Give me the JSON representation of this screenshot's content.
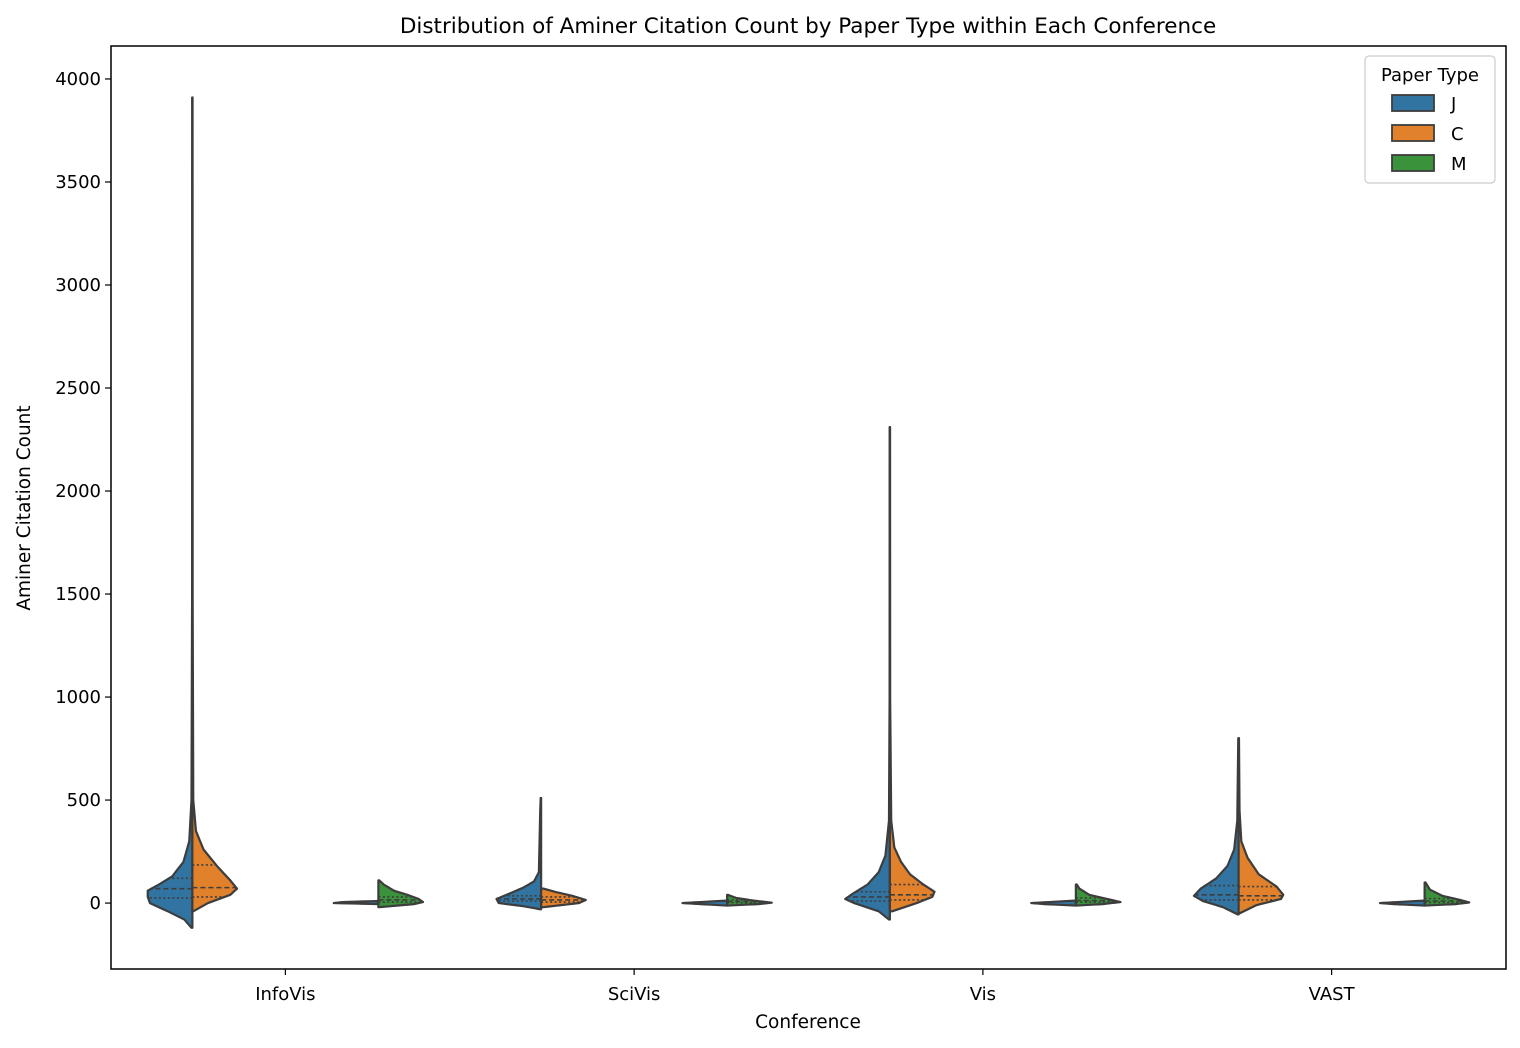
{
  "chart_data": {
    "type": "violin",
    "title": "Distribution of Aminer Citation Count by Paper Type within Each Conference",
    "xlabel": "Conference",
    "ylabel": "Aminer Citation Count",
    "ylim": [
      -320,
      4160
    ],
    "yticks": [
      0,
      500,
      1000,
      1500,
      2000,
      2500,
      3000,
      3500,
      4000
    ],
    "categories": [
      "InfoVis",
      "SciVis",
      "Vis",
      "VAST"
    ],
    "legend": {
      "title": "Paper Type",
      "position": "top-right",
      "entries": [
        {
          "label": "J",
          "color": "#3274a1"
        },
        {
          "label": "C",
          "color": "#e1812c"
        },
        {
          "label": "M",
          "color": "#3a923a"
        }
      ]
    },
    "violins": [
      {
        "conference": "InfoVis",
        "slot": 0,
        "left": "J",
        "right": "C",
        "min": -120,
        "max": 3910,
        "left_profile": [
          [
            -120,
            0.02
          ],
          [
            -80,
            0.18
          ],
          [
            -40,
            0.55
          ],
          [
            0,
            0.95
          ],
          [
            30,
            1.0
          ],
          [
            60,
            1.0
          ],
          [
            90,
            0.75
          ],
          [
            130,
            0.45
          ],
          [
            200,
            0.2
          ],
          [
            300,
            0.07
          ],
          [
            500,
            0.02
          ],
          [
            1500,
            0.006
          ],
          [
            3910,
            0.004
          ]
        ],
        "right_profile": [
          [
            -40,
            0.02
          ],
          [
            0,
            0.35
          ],
          [
            40,
            0.85
          ],
          [
            70,
            1.0
          ],
          [
            110,
            0.85
          ],
          [
            180,
            0.55
          ],
          [
            260,
            0.25
          ],
          [
            350,
            0.08
          ],
          [
            500,
            0.02
          ],
          [
            1500,
            0.006
          ],
          [
            3910,
            0.004
          ]
        ],
        "left_quartiles": [
          25,
          70,
          120
        ],
        "right_quartiles": [
          30,
          75,
          185
        ]
      },
      {
        "conference": "InfoVis",
        "slot": 2,
        "left": "J",
        "right": "M",
        "min": -20,
        "max": 110,
        "left_profile": [
          [
            -5,
            0.0
          ],
          [
            0,
            1.0
          ],
          [
            5,
            0.8
          ],
          [
            10,
            0.0
          ]
        ],
        "right_profile": [
          [
            -20,
            0.02
          ],
          [
            -5,
            0.8
          ],
          [
            5,
            1.0
          ],
          [
            20,
            0.9
          ],
          [
            40,
            0.65
          ],
          [
            60,
            0.35
          ],
          [
            90,
            0.12
          ],
          [
            110,
            0.02
          ]
        ],
        "left_quartiles": [],
        "right_quartiles": [
          5,
          15,
          30
        ]
      },
      {
        "conference": "SciVis",
        "slot": 0,
        "left": "J",
        "right": "C",
        "min": -30,
        "max": 510,
        "left_profile": [
          [
            -30,
            0.02
          ],
          [
            -15,
            0.4
          ],
          [
            0,
            0.95
          ],
          [
            20,
            1.0
          ],
          [
            45,
            0.72
          ],
          [
            75,
            0.4
          ],
          [
            105,
            0.16
          ],
          [
            150,
            0.05
          ],
          [
            250,
            0.04
          ],
          [
            350,
            0.03
          ],
          [
            450,
            0.02
          ],
          [
            510,
            0.01
          ]
        ],
        "right_profile": [
          [
            -20,
            0.05
          ],
          [
            0,
            0.85
          ],
          [
            15,
            1.0
          ],
          [
            35,
            0.7
          ],
          [
            55,
            0.3
          ],
          [
            70,
            0.06
          ]
        ],
        "left_quartiles": [
          10,
          20,
          35
        ],
        "right_quartiles": [
          5,
          15,
          30
        ]
      },
      {
        "conference": "SciVis",
        "slot": 2,
        "left": "J",
        "right": "M",
        "min": -12,
        "max": 40,
        "left_profile": [
          [
            -12,
            0.02
          ],
          [
            -5,
            0.6
          ],
          [
            0,
            1.0
          ],
          [
            5,
            0.6
          ],
          [
            12,
            0.02
          ]
        ],
        "right_profile": [
          [
            -12,
            0.02
          ],
          [
            -5,
            0.7
          ],
          [
            2,
            1.0
          ],
          [
            12,
            0.6
          ],
          [
            25,
            0.2
          ],
          [
            40,
            0.02
          ]
        ],
        "left_quartiles": [],
        "right_quartiles": [
          2,
          8,
          15
        ]
      },
      {
        "conference": "Vis",
        "slot": 0,
        "left": "J",
        "right": "C",
        "min": -80,
        "max": 2310,
        "left_profile": [
          [
            -80,
            0.02
          ],
          [
            -40,
            0.25
          ],
          [
            0,
            0.8
          ],
          [
            20,
            1.0
          ],
          [
            50,
            0.8
          ],
          [
            90,
            0.5
          ],
          [
            150,
            0.25
          ],
          [
            230,
            0.1
          ],
          [
            400,
            0.02
          ],
          [
            1000,
            0.006
          ],
          [
            2310,
            0.004
          ]
        ],
        "right_profile": [
          [
            -40,
            0.05
          ],
          [
            0,
            0.6
          ],
          [
            30,
            0.95
          ],
          [
            55,
            1.0
          ],
          [
            90,
            0.75
          ],
          [
            140,
            0.45
          ],
          [
            200,
            0.25
          ],
          [
            270,
            0.1
          ],
          [
            400,
            0.03
          ],
          [
            1000,
            0.006
          ],
          [
            2310,
            0.004
          ]
        ],
        "left_quartiles": [
          10,
          30,
          55
        ],
        "right_quartiles": [
          15,
          40,
          90
        ]
      },
      {
        "conference": "Vis",
        "slot": 2,
        "left": "J",
        "right": "M",
        "min": -12,
        "max": 90,
        "left_profile": [
          [
            -12,
            0.02
          ],
          [
            -5,
            0.7
          ],
          [
            0,
            1.0
          ],
          [
            5,
            0.6
          ],
          [
            12,
            0.02
          ]
        ],
        "right_profile": [
          [
            -12,
            0.02
          ],
          [
            -5,
            0.6
          ],
          [
            5,
            1.0
          ],
          [
            20,
            0.7
          ],
          [
            40,
            0.3
          ],
          [
            70,
            0.08
          ],
          [
            90,
            0.02
          ]
        ],
        "left_quartiles": [],
        "right_quartiles": [
          5,
          12,
          25
        ]
      },
      {
        "conference": "VAST",
        "slot": 0,
        "left": "J",
        "right": "C",
        "min": -55,
        "max": 800,
        "left_profile": [
          [
            -55,
            0.02
          ],
          [
            -20,
            0.35
          ],
          [
            10,
            0.8
          ],
          [
            35,
            1.0
          ],
          [
            70,
            0.85
          ],
          [
            120,
            0.5
          ],
          [
            180,
            0.25
          ],
          [
            260,
            0.1
          ],
          [
            400,
            0.03
          ],
          [
            800,
            0.008
          ]
        ],
        "right_profile": [
          [
            -50,
            0.02
          ],
          [
            -10,
            0.4
          ],
          [
            20,
            0.95
          ],
          [
            40,
            1.0
          ],
          [
            80,
            0.85
          ],
          [
            140,
            0.45
          ],
          [
            220,
            0.2
          ],
          [
            300,
            0.06
          ],
          [
            450,
            0.02
          ],
          [
            800,
            0.008
          ]
        ],
        "left_quartiles": [
          15,
          40,
          85
        ],
        "right_quartiles": [
          15,
          35,
          80
        ]
      },
      {
        "conference": "VAST",
        "slot": 2,
        "left": "J",
        "right": "M",
        "min": -12,
        "max": 100,
        "left_profile": [
          [
            -12,
            0.02
          ],
          [
            -5,
            0.7
          ],
          [
            0,
            1.0
          ],
          [
            5,
            0.6
          ],
          [
            12,
            0.02
          ]
        ],
        "right_profile": [
          [
            -12,
            0.02
          ],
          [
            -5,
            0.7
          ],
          [
            3,
            1.0
          ],
          [
            15,
            0.8
          ],
          [
            35,
            0.4
          ],
          [
            65,
            0.12
          ],
          [
            100,
            0.02
          ]
        ],
        "left_quartiles": [],
        "right_quartiles": [
          3,
          10,
          22
        ]
      }
    ],
    "edge_color": "#3d3d3d",
    "grid": false
  }
}
